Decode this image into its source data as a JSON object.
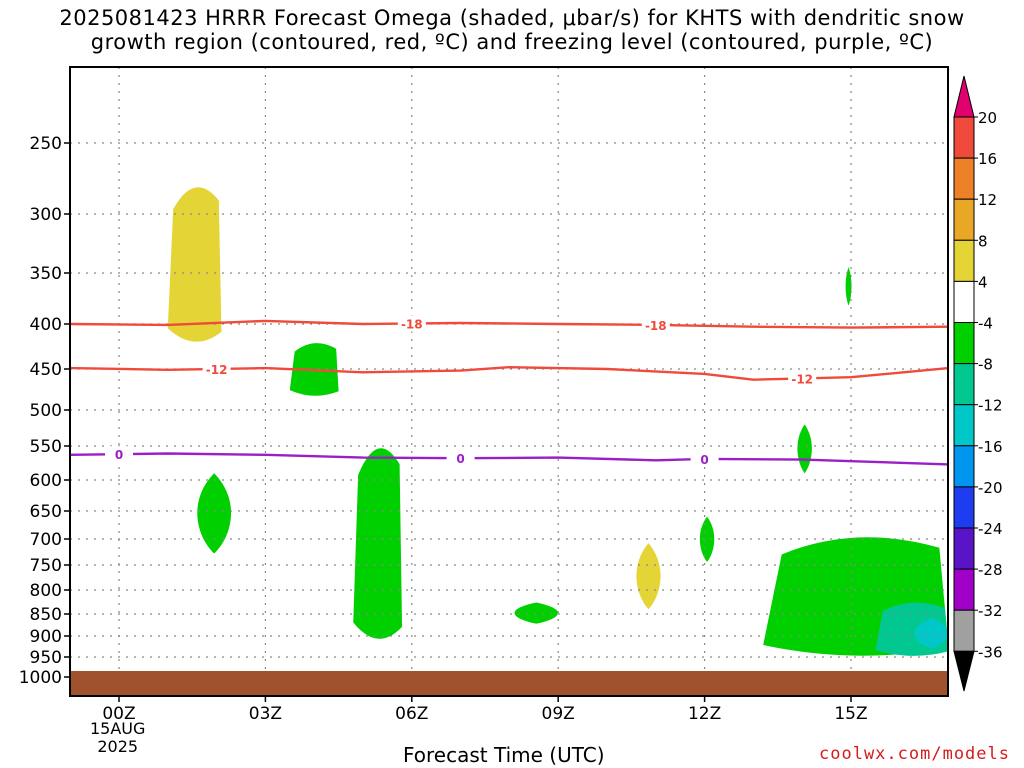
{
  "title": {
    "line1": "2025081423 HRRR Forecast Omega (shaded, μbar/s) for KHTS with dendritic snow",
    "line2": "growth region (contoured, red, ºC) and freezing level (contoured, purple, ºC)"
  },
  "xlabel": "Forecast Time (UTC)",
  "date_label": {
    "day": "15AUG",
    "year": "2025"
  },
  "credit": "coolwx.com/models",
  "colors": {
    "ground": "#a0522d",
    "isotherm": "#f04a3c",
    "freezing": "#9b1fc9",
    "grid": "#888888"
  },
  "chart_data": {
    "type": "contour-timeheight",
    "title": "2025081423 HRRR Forecast Omega (shaded, μbar/s) for KHTS with dendritic snow growth region (contoured, red, ºC) and freezing level (contoured, purple, ºC)",
    "xlabel": "Forecast Time (UTC)",
    "ylabel": "",
    "x_ticks": [
      "00Z",
      "03Z",
      "06Z",
      "09Z",
      "12Z",
      "15Z"
    ],
    "x_ticks_hours": [
      0,
      3,
      6,
      9,
      12,
      15
    ],
    "xlim": [
      -1,
      17
    ],
    "y_ticks": [
      250,
      300,
      350,
      400,
      450,
      500,
      550,
      600,
      650,
      700,
      750,
      800,
      850,
      900,
      950,
      1000
    ],
    "ylim": [
      200,
      1025
    ],
    "grid": true,
    "colorbar": {
      "ticks": [
        "20",
        "16",
        "12",
        "8",
        "4",
        "-4",
        "-8",
        "-12",
        "-16",
        "-20",
        "-24",
        "-28",
        "-32",
        "-36"
      ],
      "bins": [
        {
          "color": "#e0006e"
        },
        {
          "color": "#f04a3c"
        },
        {
          "color": "#ee8028"
        },
        {
          "color": "#e8a825"
        },
        {
          "color": "#e4d435"
        },
        {
          "color": "#ffffff"
        },
        {
          "color": "#00d000"
        },
        {
          "color": "#00c890"
        },
        {
          "color": "#00c8c8"
        },
        {
          "color": "#0096f0"
        },
        {
          "color": "#1e3cf0"
        },
        {
          "color": "#5a14c8"
        },
        {
          "color": "#a000c8"
        },
        {
          "color": "#a0a0a0"
        },
        {
          "color": "#000000"
        }
      ]
    },
    "contours": [
      {
        "label": "-18",
        "color": "#f04a3c",
        "points": [
          [
            -1,
            400
          ],
          [
            1,
            401
          ],
          [
            3,
            397
          ],
          [
            5,
            400
          ],
          [
            7,
            399
          ],
          [
            9,
            400
          ],
          [
            11,
            401
          ],
          [
            13,
            403
          ],
          [
            15,
            404
          ],
          [
            17,
            403
          ]
        ],
        "label_hours": [
          6,
          11
        ]
      },
      {
        "label": "-12",
        "color": "#f04a3c",
        "points": [
          [
            -1,
            449
          ],
          [
            1,
            451
          ],
          [
            3,
            449
          ],
          [
            5,
            454
          ],
          [
            7,
            452
          ],
          [
            8,
            448
          ],
          [
            10,
            450
          ],
          [
            12,
            456
          ],
          [
            13,
            463
          ],
          [
            15,
            460
          ],
          [
            17,
            449
          ]
        ],
        "label_hours": [
          2,
          14
        ]
      },
      {
        "label": "0",
        "color": "#9b1fc9",
        "points": [
          [
            -1,
            563
          ],
          [
            1,
            561
          ],
          [
            3,
            563
          ],
          [
            5,
            567
          ],
          [
            7,
            568
          ],
          [
            9,
            567
          ],
          [
            11,
            571
          ],
          [
            12,
            569
          ],
          [
            14,
            570
          ],
          [
            17,
            577
          ]
        ],
        "label_hours": [
          0,
          7,
          12
        ]
      }
    ],
    "omega_regions": [
      {
        "bin": "4 to 8",
        "color": "#e4d435",
        "hours": [
          1.0,
          2.1
        ],
        "pressure": [
          272,
          428
        ]
      },
      {
        "bin": "4 to 8",
        "color": "#e4d435",
        "hours": [
          10.6,
          11.1
        ],
        "pressure": [
          708,
          840
        ]
      },
      {
        "bin": "-4 to -8",
        "color": "#00d000",
        "hours": [
          4.8,
          5.8
        ],
        "pressure": [
          530,
          930
        ]
      },
      {
        "bin": "-4 to -8",
        "color": "#00d000",
        "hours": [
          3.5,
          4.5
        ],
        "pressure": [
          418,
          484
        ]
      },
      {
        "bin": "-4 to -8",
        "color": "#00d000",
        "hours": [
          1.6,
          2.3
        ],
        "pressure": [
          590,
          728
        ]
      },
      {
        "bin": "-4 to -8",
        "color": "#00d000",
        "hours": [
          8.1,
          9.0
        ],
        "pressure": [
          826,
          872
        ]
      },
      {
        "bin": "-4 to -8",
        "color": "#00d000",
        "hours": [
          11.9,
          12.2
        ],
        "pressure": [
          660,
          744
        ]
      },
      {
        "bin": "-4 to -8",
        "color": "#00d000",
        "hours": [
          13.9,
          14.2
        ],
        "pressure": [
          520,
          590
        ]
      },
      {
        "bin": "-4 to -8",
        "color": "#00d000",
        "hours": [
          14.9,
          15.0
        ],
        "pressure": [
          345,
          382
        ]
      },
      {
        "bin": "-4 to -8",
        "color": "#00d000",
        "hours": [
          13.2,
          17.0
        ],
        "pressure": [
          680,
          960
        ]
      },
      {
        "bin": "-8 to -12",
        "color": "#00c890",
        "hours": [
          15.5,
          17.0
        ],
        "pressure": [
          820,
          950
        ]
      },
      {
        "bin": "-12 to -16",
        "color": "#00c8c8",
        "hours": [
          16.3,
          17.0
        ],
        "pressure": [
          860,
          930
        ]
      }
    ],
    "ground_pressure": 985
  }
}
